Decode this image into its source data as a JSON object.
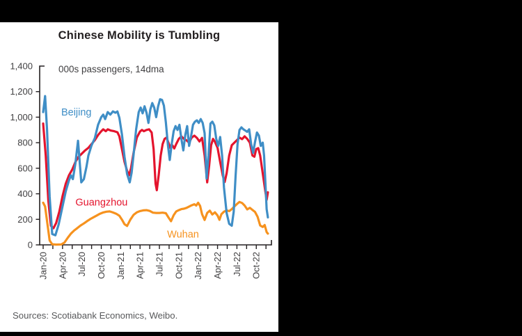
{
  "footer": {
    "sources": "Sources: Scotiabank Economics, Weibo."
  },
  "colors": {
    "canvas_background": "#000000",
    "panel_background": "#FFFFFF",
    "axis": "#231F20",
    "tick_label_text": "#414042",
    "title_text": "#231F20",
    "source_text": "#57585A"
  },
  "chart_data": {
    "type": "line",
    "title": "Chinese Mobility is Tumbling",
    "subtitle": "000s passengers, 14dma",
    "x_axis": {
      "unit": "months since Jan-2020",
      "tick_labels": [
        "Jan-20",
        "Apr-20",
        "Jul-20",
        "Oct-20",
        "Jan-21",
        "Apr-21",
        "Jul-21",
        "Oct-21",
        "Jan-22",
        "Apr-22",
        "Jul-22",
        "Oct-22"
      ],
      "labeled_tick_step_months": 3,
      "minor_tick_step_months": 1.5,
      "range_months": [
        0,
        35.3
      ]
    },
    "y_axis": {
      "min": 0,
      "max": 1400,
      "step": 200,
      "tick_labels": [
        "0",
        "200",
        "400",
        "600",
        "800",
        "1,000",
        "1,200",
        "1,400"
      ]
    },
    "grid": false,
    "legend_position": "inline-labels",
    "series": [
      {
        "name": "Wuhan",
        "color": "#F6921E",
        "label_at": [
          19.2,
          80
        ],
        "points": [
          [
            0,
            330
          ],
          [
            0.3,
            300
          ],
          [
            0.7,
            150
          ],
          [
            1,
            35
          ],
          [
            1.4,
            5
          ],
          [
            2,
            2
          ],
          [
            2.8,
            3
          ],
          [
            3.3,
            18
          ],
          [
            3.8,
            55
          ],
          [
            4.3,
            88
          ],
          [
            4.8,
            112
          ],
          [
            5.3,
            132
          ],
          [
            5.8,
            152
          ],
          [
            6.3,
            168
          ],
          [
            6.8,
            186
          ],
          [
            7.3,
            202
          ],
          [
            7.8,
            216
          ],
          [
            8.3,
            230
          ],
          [
            8.8,
            244
          ],
          [
            9.3,
            254
          ],
          [
            9.8,
            260
          ],
          [
            10.3,
            262
          ],
          [
            10.8,
            254
          ],
          [
            11.3,
            244
          ],
          [
            11.8,
            228
          ],
          [
            12.2,
            198
          ],
          [
            12.6,
            162
          ],
          [
            13,
            148
          ],
          [
            13.5,
            198
          ],
          [
            14,
            235
          ],
          [
            14.5,
            255
          ],
          [
            15,
            265
          ],
          [
            15.5,
            270
          ],
          [
            16,
            272
          ],
          [
            16.5,
            266
          ],
          [
            17,
            252
          ],
          [
            17.5,
            250
          ],
          [
            18,
            250
          ],
          [
            18.5,
            252
          ],
          [
            19,
            248
          ],
          [
            19.4,
            215
          ],
          [
            19.8,
            185
          ],
          [
            20.2,
            232
          ],
          [
            20.6,
            262
          ],
          [
            21,
            272
          ],
          [
            21.4,
            280
          ],
          [
            21.8,
            283
          ],
          [
            22.2,
            290
          ],
          [
            22.6,
            300
          ],
          [
            23,
            310
          ],
          [
            23.4,
            318
          ],
          [
            23.7,
            308
          ],
          [
            24,
            330
          ],
          [
            24.3,
            305
          ],
          [
            24.6,
            240
          ],
          [
            25,
            195
          ],
          [
            25.4,
            250
          ],
          [
            25.8,
            268
          ],
          [
            26.2,
            238
          ],
          [
            26.6,
            255
          ],
          [
            27,
            230
          ],
          [
            27.3,
            196
          ],
          [
            27.6,
            240
          ],
          [
            28,
            260
          ],
          [
            28.4,
            270
          ],
          [
            28.8,
            264
          ],
          [
            29.2,
            280
          ],
          [
            29.6,
            300
          ],
          [
            30,
            320
          ],
          [
            30.4,
            336
          ],
          [
            30.8,
            328
          ],
          [
            31.2,
            308
          ],
          [
            31.6,
            278
          ],
          [
            32,
            290
          ],
          [
            32.4,
            274
          ],
          [
            32.8,
            258
          ],
          [
            33.2,
            220
          ],
          [
            33.6,
            152
          ],
          [
            34,
            140
          ],
          [
            34.3,
            155
          ],
          [
            34.6,
            100
          ],
          [
            34.8,
            88
          ]
        ]
      },
      {
        "name": "Guangzhou",
        "color": "#E4142D",
        "label_at": [
          5.0,
          330
        ],
        "points": [
          [
            0,
            950
          ],
          [
            0.4,
            700
          ],
          [
            0.8,
            350
          ],
          [
            1.2,
            150
          ],
          [
            1.6,
            130
          ],
          [
            2,
            170
          ],
          [
            2.5,
            260
          ],
          [
            3,
            380
          ],
          [
            3.5,
            480
          ],
          [
            4,
            545
          ],
          [
            4.5,
            590
          ],
          [
            5,
            650
          ],
          [
            5.5,
            690
          ],
          [
            6,
            715
          ],
          [
            6.5,
            740
          ],
          [
            7,
            760
          ],
          [
            7.5,
            790
          ],
          [
            8,
            820
          ],
          [
            8.5,
            860
          ],
          [
            9,
            890
          ],
          [
            9.3,
            905
          ],
          [
            9.7,
            890
          ],
          [
            10,
            905
          ],
          [
            10.5,
            895
          ],
          [
            11,
            890
          ],
          [
            11.5,
            882
          ],
          [
            11.8,
            850
          ],
          [
            12.2,
            750
          ],
          [
            12.6,
            650
          ],
          [
            13,
            580
          ],
          [
            13.3,
            545
          ],
          [
            13.6,
            600
          ],
          [
            14,
            720
          ],
          [
            14.5,
            840
          ],
          [
            15,
            888
          ],
          [
            15.3,
            900
          ],
          [
            15.6,
            890
          ],
          [
            16,
            900
          ],
          [
            16.4,
            905
          ],
          [
            16.8,
            880
          ],
          [
            17.1,
            750
          ],
          [
            17.4,
            480
          ],
          [
            17.6,
            428
          ],
          [
            17.9,
            550
          ],
          [
            18.2,
            700
          ],
          [
            18.5,
            790
          ],
          [
            18.8,
            830
          ],
          [
            19.1,
            840
          ],
          [
            19.4,
            800
          ],
          [
            19.7,
            760
          ],
          [
            20,
            780
          ],
          [
            20.3,
            755
          ],
          [
            20.6,
            790
          ],
          [
            21,
            830
          ],
          [
            21.4,
            850
          ],
          [
            21.8,
            830
          ],
          [
            22.2,
            818
          ],
          [
            22.6,
            800
          ],
          [
            23,
            840
          ],
          [
            23.4,
            855
          ],
          [
            23.8,
            838
          ],
          [
            24.2,
            810
          ],
          [
            24.6,
            838
          ],
          [
            25,
            700
          ],
          [
            25.4,
            490
          ],
          [
            25.7,
            620
          ],
          [
            26,
            780
          ],
          [
            26.3,
            830
          ],
          [
            26.6,
            808
          ],
          [
            27,
            760
          ],
          [
            27.4,
            650
          ],
          [
            27.8,
            545
          ],
          [
            28.1,
            492
          ],
          [
            28.4,
            560
          ],
          [
            28.8,
            700
          ],
          [
            29.2,
            780
          ],
          [
            29.6,
            800
          ],
          [
            30,
            820
          ],
          [
            30.4,
            840
          ],
          [
            30.8,
            828
          ],
          [
            31.2,
            850
          ],
          [
            31.6,
            830
          ],
          [
            32,
            800
          ],
          [
            32.4,
            700
          ],
          [
            32.7,
            690
          ],
          [
            33,
            750
          ],
          [
            33.3,
            758
          ],
          [
            33.6,
            700
          ],
          [
            34,
            560
          ],
          [
            34.4,
            420
          ],
          [
            34.6,
            352
          ],
          [
            34.8,
            412
          ]
        ]
      },
      {
        "name": "Beijing",
        "color": "#3F8EC6",
        "label_at": [
          2.8,
          1035
        ],
        "points": [
          [
            0,
            1040
          ],
          [
            0.3,
            1165
          ],
          [
            0.6,
            900
          ],
          [
            1,
            380
          ],
          [
            1.4,
            85
          ],
          [
            1.9,
            75
          ],
          [
            2.4,
            160
          ],
          [
            3,
            300
          ],
          [
            3.5,
            420
          ],
          [
            4,
            505
          ],
          [
            4.3,
            545
          ],
          [
            4.6,
            515
          ],
          [
            5,
            640
          ],
          [
            5.4,
            815
          ],
          [
            5.9,
            490
          ],
          [
            6.3,
            515
          ],
          [
            6.7,
            610
          ],
          [
            7,
            700
          ],
          [
            7.5,
            780
          ],
          [
            8,
            835
          ],
          [
            8.5,
            940
          ],
          [
            9,
            1000
          ],
          [
            9.3,
            1020
          ],
          [
            9.6,
            985
          ],
          [
            10,
            1040
          ],
          [
            10.4,
            1020
          ],
          [
            10.8,
            1045
          ],
          [
            11.2,
            1035
          ],
          [
            11.5,
            1045
          ],
          [
            11.8,
            995
          ],
          [
            12.2,
            865
          ],
          [
            12.6,
            690
          ],
          [
            13,
            555
          ],
          [
            13.4,
            490
          ],
          [
            13.7,
            565
          ],
          [
            14,
            705
          ],
          [
            14.4,
            905
          ],
          [
            14.8,
            1040
          ],
          [
            15.1,
            1075
          ],
          [
            15.4,
            1030
          ],
          [
            15.7,
            1085
          ],
          [
            16,
            1035
          ],
          [
            16.3,
            955
          ],
          [
            16.6,
            1060
          ],
          [
            16.9,
            1110
          ],
          [
            17.2,
            1075
          ],
          [
            17.5,
            1000
          ],
          [
            17.8,
            1085
          ],
          [
            18.1,
            1140
          ],
          [
            18.4,
            1135
          ],
          [
            18.7,
            1090
          ],
          [
            19,
            960
          ],
          [
            19.3,
            790
          ],
          [
            19.6,
            665
          ],
          [
            19.9,
            790
          ],
          [
            20.2,
            890
          ],
          [
            20.5,
            930
          ],
          [
            20.8,
            900
          ],
          [
            21.1,
            940
          ],
          [
            21.4,
            830
          ],
          [
            21.7,
            740
          ],
          [
            22,
            860
          ],
          [
            22.3,
            930
          ],
          [
            22.6,
            775
          ],
          [
            22.9,
            850
          ],
          [
            23.2,
            940
          ],
          [
            23.5,
            965
          ],
          [
            23.8,
            975
          ],
          [
            24.1,
            955
          ],
          [
            24.4,
            985
          ],
          [
            24.7,
            955
          ],
          [
            25,
            875
          ],
          [
            25.3,
            520
          ],
          [
            25.6,
            700
          ],
          [
            25.9,
            950
          ],
          [
            26.2,
            965
          ],
          [
            26.5,
            935
          ],
          [
            26.8,
            830
          ],
          [
            27.1,
            775
          ],
          [
            27.4,
            845
          ],
          [
            27.7,
            700
          ],
          [
            28,
            450
          ],
          [
            28.4,
            250
          ],
          [
            28.8,
            165
          ],
          [
            29.2,
            150
          ],
          [
            29.5,
            260
          ],
          [
            29.8,
            540
          ],
          [
            30.1,
            790
          ],
          [
            30.4,
            900
          ],
          [
            30.7,
            920
          ],
          [
            31,
            905
          ],
          [
            31.3,
            895
          ],
          [
            31.6,
            885
          ],
          [
            31.9,
            905
          ],
          [
            32.2,
            790
          ],
          [
            32.5,
            720
          ],
          [
            32.8,
            805
          ],
          [
            33.1,
            880
          ],
          [
            33.4,
            855
          ],
          [
            33.7,
            775
          ],
          [
            34,
            800
          ],
          [
            34.2,
            700
          ],
          [
            34.4,
            500
          ],
          [
            34.6,
            280
          ],
          [
            34.8,
            215
          ]
        ]
      }
    ]
  }
}
